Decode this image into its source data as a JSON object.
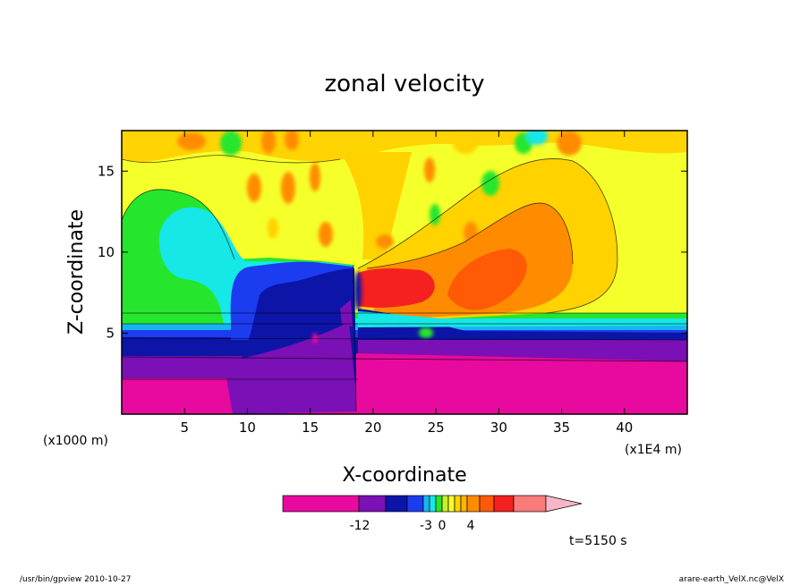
{
  "chart_data": {
    "type": "heatmap",
    "title": "zonal velocity",
    "xlabel": "X-coordinate",
    "ylabel": "Z-coordinate",
    "x_unit_left": "(x1000 m)",
    "x_unit_right": "(x1E4 m)",
    "xlim": [
      0,
      45
    ],
    "ylim": [
      0,
      17.5
    ],
    "x_ticks": [
      5,
      10,
      15,
      20,
      25,
      30,
      35,
      40
    ],
    "x_tick_labels": [
      "5",
      "10",
      "15",
      "20",
      "25",
      "30",
      "35",
      "40"
    ],
    "y_ticks": [
      5,
      10,
      15
    ],
    "y_tick_labels": [
      "5",
      "10",
      "15"
    ],
    "colorbar": {
      "colors": [
        "#e8099f",
        "#7a10b5",
        "#0d14a8",
        "#1c3cf0",
        "#17b5f0",
        "#16e7e7",
        "#25e62d",
        "#c8f02f",
        "#f5ff2a",
        "#ffd200",
        "#ffb400",
        "#ff8c00",
        "#ff5a05",
        "#f52020",
        "#fa7a7a"
      ],
      "end_arrow_color": "#f7b6c8",
      "labels": [
        "-12",
        "-3",
        "0",
        "4"
      ]
    },
    "time_label": "t=5150 s"
  },
  "footer": {
    "left": "/usr/bin/gpview   2010-10-27",
    "right": "arare-earth_VelX.nc@VelX"
  }
}
